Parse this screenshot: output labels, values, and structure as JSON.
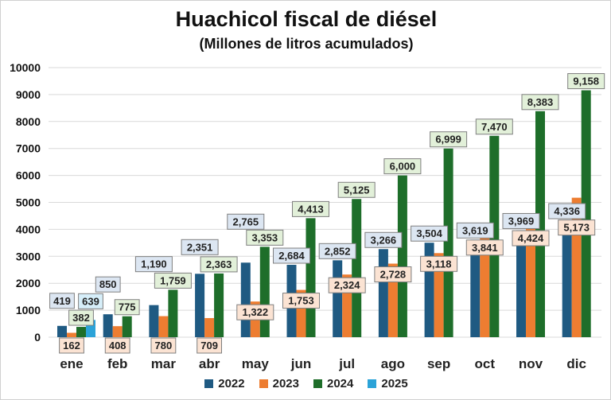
{
  "chart_data": {
    "type": "bar",
    "title": "Huachicol fiscal de diésel",
    "subtitle": "(Millones de litros acumulados)",
    "xlabel": "",
    "ylabel": "",
    "ylim": [
      0,
      10000
    ],
    "yticks": [
      0,
      1000,
      2000,
      3000,
      4000,
      5000,
      6000,
      7000,
      8000,
      9000,
      10000
    ],
    "grid": true,
    "legend": "bottom",
    "categories": [
      "ene",
      "feb",
      "mar",
      "abr",
      "may",
      "jun",
      "jul",
      "ago",
      "sep",
      "oct",
      "nov",
      "dic"
    ],
    "series": [
      {
        "name": "2022",
        "color": "#1f5a82",
        "label_fill": "#dce6f2",
        "values": [
          419,
          850,
          1190,
          2351,
          2765,
          2684,
          2852,
          3266,
          3504,
          3619,
          3969,
          4336
        ]
      },
      {
        "name": "2023",
        "color": "#ed7d31",
        "label_fill": "#fbe3d3",
        "values": [
          162,
          408,
          780,
          709,
          1322,
          1753,
          2324,
          2728,
          3118,
          3841,
          4424,
          5173
        ]
      },
      {
        "name": "2024",
        "color": "#1e6e2a",
        "label_fill": "#e2f0d9",
        "values": [
          382,
          775,
          1759,
          2363,
          3353,
          4413,
          5125,
          6000,
          6999,
          7470,
          8383,
          9158
        ]
      },
      {
        "name": "2025",
        "color": "#2ba3d8",
        "label_fill": "#d6eef9",
        "values": [
          639,
          null,
          null,
          null,
          null,
          null,
          null,
          null,
          null,
          null,
          null,
          null
        ]
      }
    ]
  }
}
